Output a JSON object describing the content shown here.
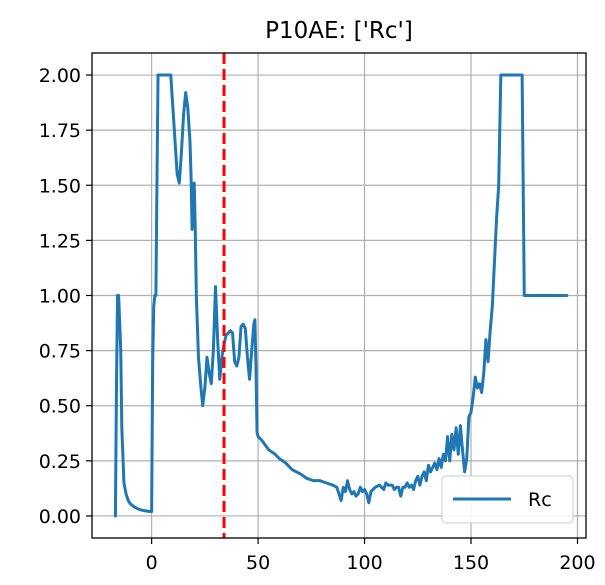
{
  "chart_data": {
    "type": "line",
    "title": "P10AE: ['Rc']",
    "xlabel": "",
    "ylabel": "",
    "xlim": [
      -28,
      204
    ],
    "ylim": [
      -0.1,
      2.1
    ],
    "x_ticks": [
      0,
      50,
      100,
      150,
      200
    ],
    "x_tick_labels": [
      "0",
      "50",
      "100",
      "150",
      "200"
    ],
    "y_ticks": [
      0,
      0.25,
      0.5,
      0.75,
      1.0,
      1.25,
      1.5,
      1.75,
      2.0
    ],
    "y_tick_labels": [
      "0.00",
      "0.25",
      "0.50",
      "0.75",
      "1.00",
      "1.25",
      "1.50",
      "1.75",
      "2.00"
    ],
    "grid": true,
    "legend_position": "lower-right",
    "series": [
      {
        "name": "Rc",
        "color": "#1f77b4",
        "points": [
          [
            -17,
            0.0
          ],
          [
            -16.5,
            0.6
          ],
          [
            -16,
            1.0
          ],
          [
            -15.5,
            1.0
          ],
          [
            -15,
            0.88
          ],
          [
            -14.5,
            0.75
          ],
          [
            -14,
            0.4
          ],
          [
            -13,
            0.15
          ],
          [
            -12,
            0.1
          ],
          [
            -11,
            0.07
          ],
          [
            -10,
            0.055
          ],
          [
            -8,
            0.04
          ],
          [
            -6,
            0.03
          ],
          [
            -4,
            0.025
          ],
          [
            -2,
            0.022
          ],
          [
            -1,
            0.02
          ],
          [
            0,
            0.02
          ],
          [
            0.5,
            0.7
          ],
          [
            1,
            0.95
          ],
          [
            1.5,
            1.0
          ],
          [
            2,
            1.0
          ],
          [
            2.5,
            1.5
          ],
          [
            3,
            2.0
          ],
          [
            5,
            2.0
          ],
          [
            7,
            2.0
          ],
          [
            9,
            2.0
          ],
          [
            10,
            1.85
          ],
          [
            11,
            1.7
          ],
          [
            12,
            1.55
          ],
          [
            13,
            1.51
          ],
          [
            14,
            1.65
          ],
          [
            15,
            1.82
          ],
          [
            16,
            1.92
          ],
          [
            17,
            1.85
          ],
          [
            18,
            1.7
          ],
          [
            18.5,
            1.55
          ],
          [
            19,
            1.3
          ],
          [
            19.5,
            1.5
          ],
          [
            20,
            1.51
          ],
          [
            20.5,
            1.3
          ],
          [
            21,
            1.0
          ],
          [
            22,
            0.72
          ],
          [
            23,
            0.6
          ],
          [
            24,
            0.5
          ],
          [
            25,
            0.58
          ],
          [
            26,
            0.72
          ],
          [
            27,
            0.65
          ],
          [
            28,
            0.6
          ],
          [
            29,
            0.75
          ],
          [
            30,
            1.04
          ],
          [
            31,
            0.8
          ],
          [
            32,
            0.62
          ],
          [
            33,
            0.72
          ],
          [
            34,
            0.78
          ],
          [
            35,
            0.82
          ],
          [
            36,
            0.83
          ],
          [
            37,
            0.84
          ],
          [
            38,
            0.83
          ],
          [
            39,
            0.7
          ],
          [
            40,
            0.68
          ],
          [
            41,
            0.72
          ],
          [
            42,
            0.86
          ],
          [
            43,
            0.87
          ],
          [
            44,
            0.85
          ],
          [
            45,
            0.72
          ],
          [
            46,
            0.62
          ],
          [
            47,
            0.75
          ],
          [
            48,
            0.87
          ],
          [
            48.5,
            0.89
          ],
          [
            49,
            0.68
          ],
          [
            49.5,
            0.38
          ],
          [
            50,
            0.36
          ],
          [
            52,
            0.34
          ],
          [
            55,
            0.3
          ],
          [
            58,
            0.28
          ],
          [
            60,
            0.26
          ],
          [
            63,
            0.24
          ],
          [
            66,
            0.21
          ],
          [
            70,
            0.19
          ],
          [
            73,
            0.17
          ],
          [
            76,
            0.16
          ],
          [
            79,
            0.16
          ],
          [
            82,
            0.15
          ],
          [
            85,
            0.14
          ],
          [
            87,
            0.13
          ],
          [
            88,
            0.1
          ],
          [
            89,
            0.07
          ],
          [
            90,
            0.13
          ],
          [
            91,
            0.11
          ],
          [
            92,
            0.16
          ],
          [
            93,
            0.12
          ],
          [
            94,
            0.1
          ],
          [
            95,
            0.11
          ],
          [
            96,
            0.09
          ],
          [
            97,
            0.1
          ],
          [
            98,
            0.13
          ],
          [
            99,
            0.11
          ],
          [
            100,
            0.12
          ],
          [
            101,
            0.1
          ],
          [
            102,
            0.06
          ],
          [
            103,
            0.11
          ],
          [
            105,
            0.13
          ],
          [
            107,
            0.14
          ],
          [
            109,
            0.12
          ],
          [
            110,
            0.15
          ],
          [
            111,
            0.14
          ],
          [
            113,
            0.14
          ],
          [
            114,
            0.12
          ],
          [
            115,
            0.13
          ],
          [
            116,
            0.13
          ],
          [
            117,
            0.09
          ],
          [
            118,
            0.13
          ],
          [
            119,
            0.13
          ],
          [
            120,
            0.15
          ],
          [
            121,
            0.13
          ],
          [
            122,
            0.14
          ],
          [
            123,
            0.12
          ],
          [
            124,
            0.16
          ],
          [
            125,
            0.18
          ],
          [
            126,
            0.14
          ],
          [
            127,
            0.18
          ],
          [
            128,
            0.2
          ],
          [
            129,
            0.16
          ],
          [
            130,
            0.23
          ],
          [
            131,
            0.2
          ],
          [
            132,
            0.22
          ],
          [
            133,
            0.24
          ],
          [
            134,
            0.21
          ],
          [
            135,
            0.26
          ],
          [
            136,
            0.22
          ],
          [
            137,
            0.28
          ],
          [
            138,
            0.25
          ],
          [
            139,
            0.36
          ],
          [
            140,
            0.25
          ],
          [
            141,
            0.37
          ],
          [
            142,
            0.3
          ],
          [
            143,
            0.4
          ],
          [
            144,
            0.28
          ],
          [
            145,
            0.41
          ],
          [
            146,
            0.3
          ],
          [
            147,
            0.2
          ],
          [
            148,
            0.26
          ],
          [
            149,
            0.45
          ],
          [
            150,
            0.47
          ],
          [
            151,
            0.54
          ],
          [
            152,
            0.63
          ],
          [
            153,
            0.58
          ],
          [
            154,
            0.6
          ],
          [
            155,
            0.56
          ],
          [
            156,
            0.65
          ],
          [
            157,
            0.8
          ],
          [
            158,
            0.7
          ],
          [
            159,
            0.84
          ],
          [
            160,
            0.95
          ],
          [
            161,
            1.15
          ],
          [
            162,
            1.35
          ],
          [
            163,
            1.5
          ],
          [
            163.5,
            1.75
          ],
          [
            164,
            2.0
          ],
          [
            166,
            2.0
          ],
          [
            168,
            2.0
          ],
          [
            170,
            2.0
          ],
          [
            172,
            2.0
          ],
          [
            174,
            2.0
          ],
          [
            174.5,
            1.5
          ],
          [
            175,
            1.0
          ],
          [
            180,
            1.0
          ],
          [
            185,
            1.0
          ],
          [
            190,
            1.0
          ],
          [
            195,
            1.0
          ]
        ]
      }
    ],
    "annotations": [
      {
        "kind": "vertical-line",
        "x": 34,
        "color": "#ff0000",
        "style": "dashed"
      }
    ]
  }
}
